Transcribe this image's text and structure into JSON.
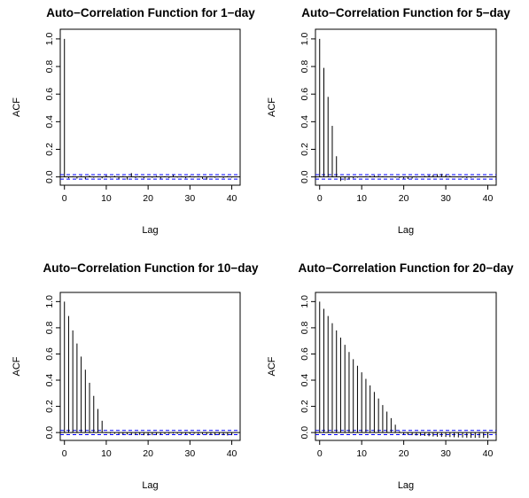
{
  "chart_data": [
    {
      "type": "bar",
      "title": "Auto−Correlation Function for 1−day",
      "xlabel": "Lag",
      "ylabel": "ACF",
      "xlim": [
        -1,
        42
      ],
      "ylim": [
        -0.06,
        1.07
      ],
      "x_ticks": [
        0,
        10,
        20,
        30,
        40
      ],
      "y_ticks": [
        0.0,
        0.2,
        0.4,
        0.6,
        0.8,
        1.0
      ],
      "y_tick_labels": [
        "0.0",
        "0.2",
        "0.4",
        "0.6",
        "0.8",
        "1.0"
      ],
      "confidence_band": [
        -0.016,
        0.016
      ],
      "grid": false,
      "lags": [
        0,
        1,
        2,
        3,
        4,
        5,
        6,
        7,
        8,
        9,
        10,
        11,
        12,
        13,
        14,
        15,
        16,
        17,
        18,
        19,
        20,
        21,
        22,
        23,
        24,
        25,
        26,
        27,
        28,
        29,
        30,
        31,
        32,
        33,
        34,
        35,
        36,
        37,
        38,
        39,
        40
      ],
      "values": [
        1.0,
        -0.01,
        0.005,
        -0.012,
        0.008,
        -0.015,
        0.01,
        -0.006,
        0.004,
        -0.01,
        0.012,
        -0.005,
        0.008,
        -0.014,
        0.006,
        -0.02,
        0.028,
        -0.008,
        0.005,
        -0.01,
        0.004,
        -0.006,
        0.008,
        -0.012,
        0.005,
        -0.008,
        0.015,
        -0.005,
        0.006,
        -0.01,
        0.008,
        -0.004,
        0.006,
        -0.014,
        -0.02,
        0.005,
        -0.006,
        0.004,
        -0.008,
        0.006,
        -0.005
      ]
    },
    {
      "type": "bar",
      "title": "Auto−Correlation Function for 5−day",
      "xlabel": "Lag",
      "ylabel": "ACF",
      "xlim": [
        -1,
        42
      ],
      "ylim": [
        -0.06,
        1.07
      ],
      "x_ticks": [
        0,
        10,
        20,
        30,
        40
      ],
      "y_ticks": [
        0.0,
        0.2,
        0.4,
        0.6,
        0.8,
        1.0
      ],
      "y_tick_labels": [
        "0.0",
        "0.2",
        "0.4",
        "0.6",
        "0.8",
        "1.0"
      ],
      "confidence_band": [
        -0.016,
        0.016
      ],
      "grid": false,
      "lags": [
        0,
        1,
        2,
        3,
        4,
        5,
        6,
        7,
        8,
        9,
        10,
        11,
        12,
        13,
        14,
        15,
        16,
        17,
        18,
        19,
        20,
        21,
        22,
        23,
        24,
        25,
        26,
        27,
        28,
        29,
        30,
        31,
        32,
        33,
        34,
        35,
        36,
        37,
        38,
        39,
        40
      ],
      "values": [
        1.0,
        0.79,
        0.58,
        0.37,
        0.15,
        -0.03,
        -0.025,
        -0.018,
        -0.01,
        -0.005,
        -0.002,
        0.005,
        0.008,
        0.01,
        0.008,
        0.005,
        0.003,
        -0.002,
        -0.005,
        -0.008,
        -0.012,
        -0.015,
        -0.012,
        -0.005,
        0.002,
        0.008,
        0.012,
        0.015,
        0.02,
        0.022,
        0.015,
        0.008,
        0.002,
        -0.003,
        -0.006,
        -0.008,
        -0.006,
        -0.004,
        -0.002,
        0.002,
        0.004
      ]
    },
    {
      "type": "bar",
      "title": "Auto−Correlation Function for 10−day",
      "xlabel": "Lag",
      "ylabel": "ACF",
      "xlim": [
        -1,
        42
      ],
      "ylim": [
        -0.06,
        1.07
      ],
      "x_ticks": [
        0,
        10,
        20,
        30,
        40
      ],
      "y_ticks": [
        0.0,
        0.2,
        0.4,
        0.6,
        0.8,
        1.0
      ],
      "y_tick_labels": [
        "0.0",
        "0.2",
        "0.4",
        "0.6",
        "0.8",
        "1.0"
      ],
      "confidence_band": [
        -0.016,
        0.016
      ],
      "grid": false,
      "lags": [
        0,
        1,
        2,
        3,
        4,
        5,
        6,
        7,
        8,
        9,
        10,
        11,
        12,
        13,
        14,
        15,
        16,
        17,
        18,
        19,
        20,
        21,
        22,
        23,
        24,
        25,
        26,
        27,
        28,
        29,
        30,
        31,
        32,
        33,
        34,
        35,
        36,
        37,
        38,
        39,
        40
      ],
      "values": [
        1.0,
        0.89,
        0.78,
        0.68,
        0.58,
        0.48,
        0.38,
        0.28,
        0.18,
        0.09,
        -0.005,
        -0.008,
        -0.01,
        -0.012,
        -0.014,
        -0.015,
        -0.016,
        -0.017,
        -0.018,
        -0.02,
        -0.022,
        -0.02,
        -0.018,
        -0.015,
        -0.012,
        -0.01,
        -0.008,
        -0.01,
        -0.012,
        -0.014,
        -0.012,
        -0.01,
        -0.012,
        -0.014,
        -0.016,
        -0.018,
        -0.02,
        -0.018,
        -0.02,
        -0.022,
        -0.02
      ]
    },
    {
      "type": "bar",
      "title": "Auto−Correlation Function for 20−day",
      "xlabel": "Lag",
      "ylabel": "ACF",
      "xlim": [
        -1,
        42
      ],
      "ylim": [
        -0.06,
        1.07
      ],
      "x_ticks": [
        0,
        10,
        20,
        30,
        40
      ],
      "y_ticks": [
        0.0,
        0.2,
        0.4,
        0.6,
        0.8,
        1.0
      ],
      "y_tick_labels": [
        "0.0",
        "0.2",
        "0.4",
        "0.6",
        "0.8",
        "1.0"
      ],
      "confidence_band": [
        -0.016,
        0.016
      ],
      "grid": false,
      "lags": [
        0,
        1,
        2,
        3,
        4,
        5,
        6,
        7,
        8,
        9,
        10,
        11,
        12,
        13,
        14,
        15,
        16,
        17,
        18,
        19,
        20,
        21,
        22,
        23,
        24,
        25,
        26,
        27,
        28,
        29,
        30,
        31,
        32,
        33,
        34,
        35,
        36,
        37,
        38,
        39,
        40
      ],
      "values": [
        1.0,
        0.945,
        0.89,
        0.835,
        0.78,
        0.725,
        0.67,
        0.615,
        0.56,
        0.51,
        0.46,
        0.41,
        0.36,
        0.31,
        0.26,
        0.21,
        0.16,
        0.11,
        0.06,
        0.01,
        -0.015,
        -0.018,
        -0.02,
        -0.022,
        -0.024,
        -0.026,
        -0.028,
        -0.03,
        -0.032,
        -0.033,
        -0.034,
        -0.035,
        -0.036,
        -0.037,
        -0.038,
        -0.039,
        -0.04,
        -0.04,
        -0.041,
        -0.041,
        -0.042
      ]
    }
  ],
  "colors": {
    "bar": "#000000",
    "zero_line": "#000000",
    "confidence_band": "#0000ff"
  }
}
